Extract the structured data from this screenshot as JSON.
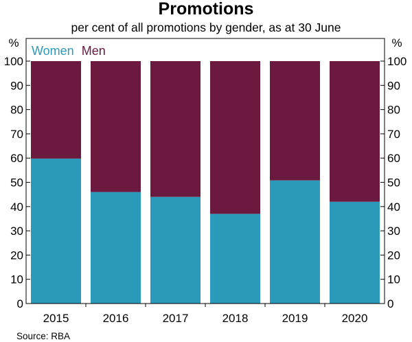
{
  "chart_data": {
    "type": "bar",
    "stacked": true,
    "title": "Promotions",
    "subtitle": "per cent of all promotions by gender, as at 30 June",
    "ylabel_left": "%",
    "ylabel_right": "%",
    "ylim": [
      0,
      100
    ],
    "yticks": [
      0,
      10,
      20,
      30,
      40,
      50,
      60,
      70,
      80,
      90,
      100
    ],
    "categories": [
      "2015",
      "2016",
      "2017",
      "2018",
      "2019",
      "2020"
    ],
    "series": [
      {
        "name": "Women",
        "color": "#2b99b9",
        "values": [
          59.8,
          46,
          44,
          37,
          50.8,
          42
        ]
      },
      {
        "name": "Men",
        "color": "#6c1940",
        "values": [
          40.2,
          54,
          56,
          63,
          49.2,
          58
        ]
      }
    ],
    "legend_position": "top-left",
    "grid": false,
    "source": "Source:   RBA"
  }
}
